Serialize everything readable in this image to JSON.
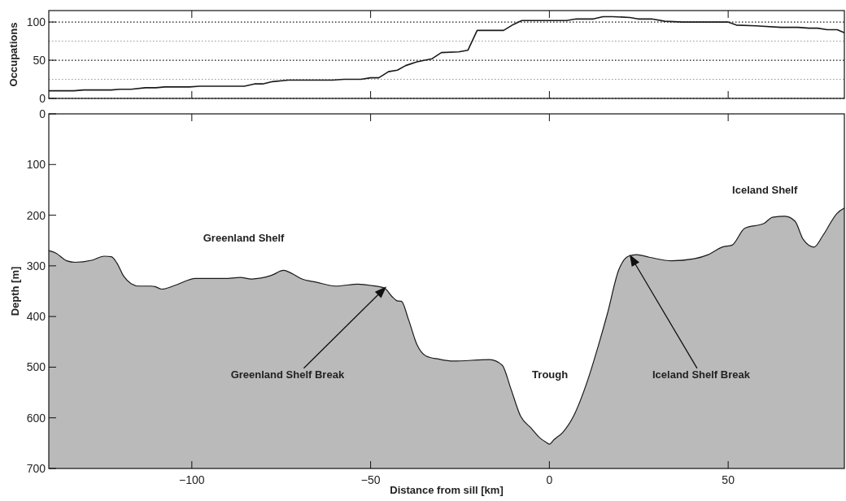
{
  "chart_data": [
    {
      "type": "line",
      "ylabel": "Occupations",
      "xlim": [
        -140,
        82.5
      ],
      "xticks": [
        -100,
        -50,
        0,
        50
      ],
      "ylim": [
        0,
        115
      ],
      "yticks": [
        0,
        {
          "value": 25,
          "label": null
        },
        50,
        {
          "value": 75,
          "label": null
        },
        100
      ],
      "grid": "y",
      "tick_labels": "y",
      "series": [
        {
          "color": "#1a1a1a",
          "x": [
            -140,
            -133,
            -130.3,
            -122.5,
            -120.2,
            -117,
            -113,
            -110,
            -107.6,
            -100.6,
            -97.8,
            -85.3,
            -82.5,
            -80.2,
            -77.4,
            -73,
            -60.6,
            -57.4,
            -52.7,
            -50,
            -47.7,
            -45,
            -42.5,
            -40.2,
            -37,
            -34.8,
            -32.8,
            -30.2,
            -25.3,
            -22.8,
            -20.2,
            -12.8,
            -10,
            -7.7,
            4.8,
            7.5,
            12.3,
            15,
            17.7,
            22.5,
            24.8,
            28.6,
            32.3,
            37.3,
            49.9,
            52.3,
            57.7,
            64.8,
            69.5,
            72.6,
            75,
            77.7,
            80.5,
            82.5
          ],
          "values": [
            10,
            10,
            11,
            11,
            12,
            12,
            14,
            14,
            15,
            15,
            16,
            16,
            19,
            19,
            22,
            24,
            24,
            25,
            25,
            27,
            27,
            35,
            37,
            43,
            48,
            50,
            52,
            60,
            61,
            63,
            89,
            89,
            97,
            102,
            102,
            104,
            104,
            107,
            107,
            106,
            104,
            104,
            101,
            100,
            100,
            96,
            95,
            93,
            93,
            92,
            92,
            90,
            90,
            86
          ]
        }
      ]
    },
    {
      "type": "line",
      "xlabel": "Distance from sill [km]",
      "ylabel": "Depth [m]",
      "xlim": [
        -140,
        82.5
      ],
      "xticks": [
        {
          "value": -100,
          "label": "−100"
        },
        {
          "value": -50,
          "label": "−50"
        },
        0,
        50
      ],
      "ylim": [
        700,
        0
      ],
      "yticks": [
        0,
        100,
        200,
        300,
        400,
        500,
        600,
        700
      ],
      "series": [
        {
          "color": "#1a1a1a",
          "x": [
            -140,
            -138,
            -135,
            -132.7,
            -128,
            -124.5,
            -122.5,
            -121,
            -119,
            -117,
            -114.7,
            -111.5,
            -110.3,
            -108.4,
            -104.5,
            -99,
            -91,
            -86.4,
            -83.3,
            -77.8,
            -74.3,
            -72.3,
            -69.2,
            -65.3,
            -59.8,
            -53.5,
            -49.6,
            -46.1,
            -44.1,
            -42.6,
            -41.4,
            -39.4,
            -37,
            -34.5,
            -31,
            -26.9,
            -16.7,
            -13.2,
            -10.8,
            -8.1,
            -5,
            -2.6,
            -1,
            0,
            1.3,
            3.7,
            6.8,
            10.7,
            13.8,
            16.2,
            19.4,
            22.1,
            24.4,
            27.9,
            34.2,
            40.5,
            44.4,
            48.3,
            51.1,
            54.6,
            60.1,
            62.4,
            65.9,
            68.7,
            71,
            74,
            76.5,
            80.5,
            82.5
          ],
          "values": [
            270,
            275,
            290,
            293,
            289,
            281,
            282,
            294,
            321,
            335,
            340,
            340,
            341,
            346,
            338,
            325,
            325,
            323,
            326,
            319,
            309,
            314,
            326,
            332,
            340,
            336,
            339,
            344,
            360,
            369,
            370,
            406,
            456,
            478,
            484,
            488,
            485,
            496,
            542,
            596,
            621,
            640,
            648,
            652,
            643,
            629,
            596,
            526,
            455,
            395,
            308,
            281,
            278,
            283,
            290,
            286,
            278,
            263,
            259,
            226,
            216,
            204,
            202,
            212,
            248,
            263,
            240,
            196,
            186
          ],
          "lower": [
            270,
            275,
            290,
            293,
            289,
            281,
            282,
            294,
            321,
            335,
            340,
            340,
            341,
            346,
            338,
            325,
            325,
            323,
            326,
            319,
            309,
            314,
            326,
            332,
            340,
            336,
            339,
            344,
            360,
            369,
            370,
            406,
            456,
            478,
            484,
            488,
            485,
            496,
            542,
            596,
            621,
            640,
            648,
            652,
            643,
            629,
            596,
            526,
            455,
            395,
            308,
            281,
            278,
            283,
            290,
            286,
            278,
            263,
            259,
            226,
            216,
            204,
            202,
            212,
            248,
            263,
            240,
            196,
            186
          ],
          "upper": [
            700,
            700,
            700,
            700,
            700,
            700,
            700,
            700,
            700,
            700,
            700,
            700,
            700,
            700,
            700,
            700,
            700,
            700,
            700,
            700,
            700,
            700,
            700,
            700,
            700,
            700,
            700,
            700,
            700,
            700,
            700,
            700,
            700,
            700,
            700,
            700,
            700,
            700,
            700,
            700,
            700,
            700,
            700,
            700,
            700,
            700,
            700,
            700,
            700,
            700,
            700,
            700,
            700,
            700,
            700,
            700,
            700,
            700,
            700,
            700,
            700,
            700,
            700,
            700,
            700,
            700,
            700,
            700,
            700
          ]
        }
      ],
      "annotations": [
        "Greenland Shelf",
        "Greenland Shelf Break",
        "Trough",
        "Iceland Shelf Break",
        "Iceland Shelf"
      ]
    }
  ]
}
